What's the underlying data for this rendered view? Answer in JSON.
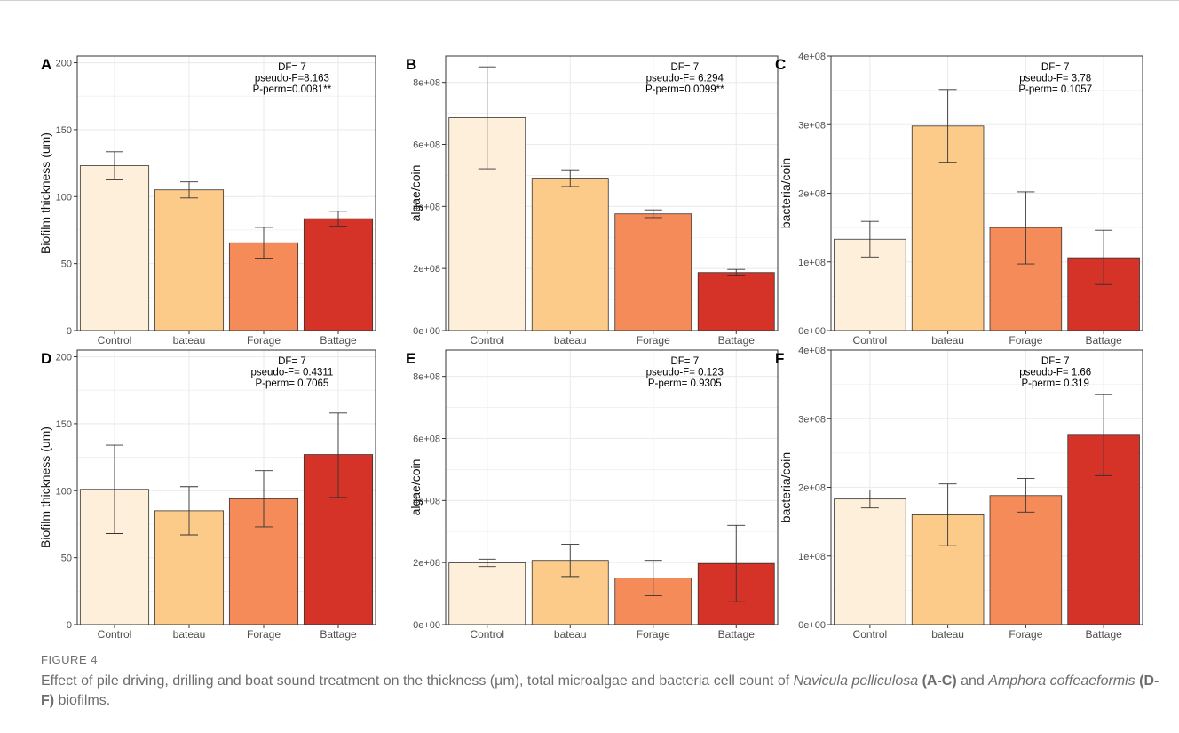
{
  "figure": {
    "label": "FIGURE 4",
    "caption": {
      "part1": "Effect of pile driving, drilling and boat sound treatment on the thickness (µm), total microalgae and bacteria cell count of ",
      "species1": "Navicula pelliculosa",
      "ref1": " (A-C)",
      "part2": " and ",
      "species2": "Amphora coffeaeformis",
      "ref2": " (D-F)",
      "part3": " biofilms."
    }
  },
  "colors": {
    "bars": [
      "#FEEFDA",
      "#FCCB8A",
      "#F58B59",
      "#D63328"
    ],
    "panel_border": "#333333",
    "grid": "#EBEBEB",
    "axis_text": "#4D4D4D"
  },
  "chart_data": [
    {
      "panel": "A",
      "type": "bar",
      "categories": [
        "Control",
        "bateau",
        "Forage",
        "Battage"
      ],
      "values": [
        123,
        105,
        65.5,
        83.5
      ],
      "error_low": [
        112.5,
        99,
        54,
        78
      ],
      "error_high": [
        133.5,
        111,
        77,
        89
      ],
      "ylabel": "Biofilm thickness (um)",
      "ylim": [
        0,
        205
      ],
      "yticks": [
        0,
        50,
        100,
        150,
        200
      ],
      "ytick_labels": [
        "0",
        "50",
        "100",
        "150",
        "200"
      ],
      "annotation": [
        "DF= 7",
        "pseudo-F=8.163",
        "P-perm=0.0081**"
      ],
      "grid": true
    },
    {
      "panel": "B",
      "type": "bar",
      "categories": [
        "Control",
        "bateau",
        "Forage",
        "Battage"
      ],
      "values": [
        686000000,
        491000000,
        376000000,
        187000000
      ],
      "error_low": [
        521000000,
        464000000,
        364000000,
        176000000
      ],
      "error_high": [
        850000000,
        518000000,
        389000000,
        197000000
      ],
      "ylabel": "algae/coin",
      "ylim": [
        0,
        885000000
      ],
      "yticks": [
        0,
        200000000,
        400000000,
        600000000,
        800000000
      ],
      "ytick_labels": [
        "0e+00",
        "2e+08",
        "4e+08",
        "6e+08",
        "8e+08"
      ],
      "annotation": [
        "DF= 7",
        "pseudo-F= 6.294",
        "P-perm=0.0099**"
      ],
      "grid": true
    },
    {
      "panel": "C",
      "type": "bar",
      "categories": [
        "Control",
        "bateau",
        "Forage",
        "Battage"
      ],
      "values": [
        133000000,
        298000000,
        150000000,
        106000000
      ],
      "error_low": [
        107000000,
        245000000,
        97000000,
        67000000
      ],
      "error_high": [
        159000000,
        351000000,
        202000000,
        146000000
      ],
      "ylabel": "bacteria/coin",
      "ylim": [
        0,
        400000000
      ],
      "yticks": [
        0,
        100000000,
        200000000,
        300000000,
        400000000
      ],
      "ytick_labels": [
        "0e+00",
        "1e+08",
        "2e+08",
        "3e+08",
        "4e+08"
      ],
      "annotation": [
        "DF= 7",
        "pseudo-F= 3.78",
        "P-perm= 0.1057"
      ],
      "grid": true
    },
    {
      "panel": "D",
      "type": "bar",
      "categories": [
        "Control",
        "bateau",
        "Forage",
        "Battage"
      ],
      "values": [
        101,
        85,
        94,
        127
      ],
      "error_low": [
        68,
        67,
        73,
        95
      ],
      "error_high": [
        134,
        103,
        115,
        158
      ],
      "ylabel": "Biofilm thickness (um)",
      "ylim": [
        0,
        205
      ],
      "yticks": [
        0,
        50,
        100,
        150,
        200
      ],
      "ytick_labels": [
        "0",
        "50",
        "100",
        "150",
        "200"
      ],
      "annotation": [
        "DF= 7",
        "pseudo-F= 0.4311",
        "P-perm= 0.7065"
      ],
      "grid": true
    },
    {
      "panel": "E",
      "type": "bar",
      "categories": [
        "Control",
        "bateau",
        "Forage",
        "Battage"
      ],
      "values": [
        199000000,
        207000000,
        150000000,
        197000000
      ],
      "error_low": [
        187000000,
        155000000,
        93000000,
        74000000
      ],
      "error_high": [
        211000000,
        259000000,
        207000000,
        320000000
      ],
      "ylabel": "algae/coin",
      "ylim": [
        0,
        885000000
      ],
      "yticks": [
        0,
        200000000,
        400000000,
        600000000,
        800000000
      ],
      "ytick_labels": [
        "0e+00",
        "2e+08",
        "4e+08",
        "6e+08",
        "8e+08"
      ],
      "annotation": [
        "DF= 7",
        "pseudo-F= 0.123",
        "P-perm= 0.9305"
      ],
      "grid": true
    },
    {
      "panel": "F",
      "type": "bar",
      "categories": [
        "Control",
        "bateau",
        "Forage",
        "Battage"
      ],
      "values": [
        183000000,
        160000000,
        188000000,
        276000000
      ],
      "error_low": [
        170000000,
        115000000,
        164000000,
        217000000
      ],
      "error_high": [
        196000000,
        205000000,
        213000000,
        335000000
      ],
      "ylabel": "bacteria/coin",
      "ylim": [
        0,
        400000000
      ],
      "yticks": [
        0,
        100000000,
        200000000,
        300000000,
        400000000
      ],
      "ytick_labels": [
        "0e+00",
        "1e+08",
        "2e+08",
        "3e+08",
        "4e+08"
      ],
      "annotation": [
        "DF= 7",
        "pseudo-F= 1.66",
        "P-perm= 0.319"
      ],
      "grid": true
    }
  ]
}
